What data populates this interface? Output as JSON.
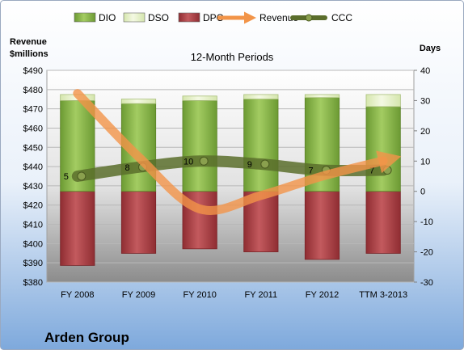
{
  "chart_data": {
    "type": "bar",
    "subtitle": "12-Month Periods",
    "company": "Arden Group",
    "left_axis_title": "Revenue\n$millions",
    "right_axis_title": "Days",
    "categories": [
      "FY 2008",
      "FY 2009",
      "FY 2010",
      "FY 2011",
      "FY 2012",
      "TTM 3-2013"
    ],
    "left_axis": {
      "min": 380,
      "max": 490,
      "step": 10,
      "prefix": "$"
    },
    "right_axis": {
      "min": -30,
      "max": 40,
      "step": 10
    },
    "legend": {
      "placement": "top",
      "entries": [
        {
          "label": "DIO",
          "kind": "bar",
          "color": "#8cb84e"
        },
        {
          "label": "DSO",
          "kind": "bar",
          "color": "#e6f0c8"
        },
        {
          "label": "DPO",
          "kind": "bar",
          "color": "#b4464a"
        },
        {
          "label": "Revenue",
          "kind": "arrow",
          "color": "#f29448"
        },
        {
          "label": "CCC",
          "kind": "line",
          "color": "#5b6e2c"
        }
      ]
    },
    "series": [
      {
        "name": "DIO",
        "axis": "right",
        "type": "stacked-bar",
        "values": [
          30,
          29,
          30,
          30.5,
          31,
          28
        ]
      },
      {
        "name": "DSO",
        "axis": "right",
        "type": "stacked-bar",
        "values": [
          2,
          1.5,
          1.5,
          1.5,
          1,
          4
        ]
      },
      {
        "name": "DPO",
        "axis": "right",
        "type": "stacked-bar-negative",
        "values": [
          -24.5,
          -20.5,
          -19,
          -20,
          -22.5,
          -20.5
        ]
      },
      {
        "name": "Revenue",
        "axis": "left",
        "type": "line",
        "values": [
          478,
          445,
          418,
          425,
          435,
          443
        ]
      },
      {
        "name": "CCC",
        "axis": "right",
        "type": "line",
        "values": [
          5,
          8,
          10,
          9,
          7,
          7
        ],
        "data_labels": [
          "5",
          "8",
          "10",
          "9",
          "7",
          "7"
        ]
      }
    ],
    "grid": true
  },
  "colors": {
    "dio": "#8cb84e",
    "dso": "#e6f0c8",
    "dpo": "#b4464a",
    "revenue": "#f29448",
    "ccc": "#5b6e2c"
  }
}
